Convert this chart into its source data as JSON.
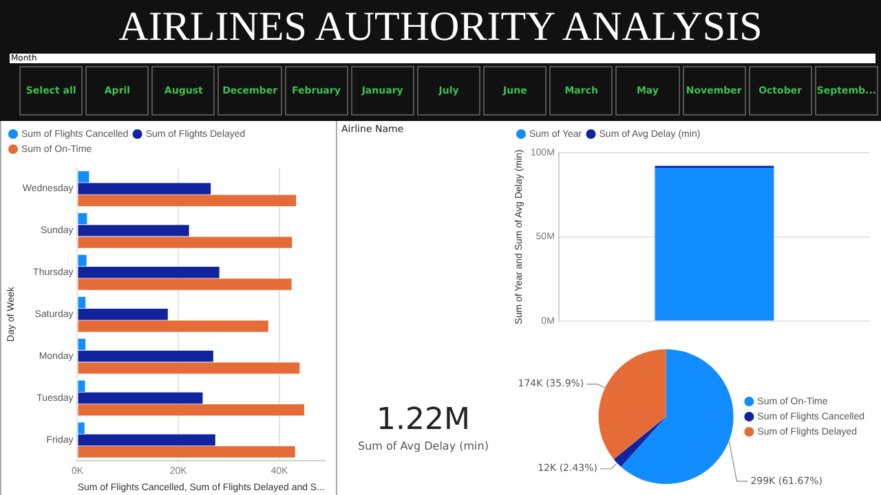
{
  "chart_data": [
    {
      "type": "other",
      "title": "AIRLINES AUTHORITY ANALYSIS",
      "subtitle": "Month",
      "annotations": [
        "Select all",
        "April",
        "August",
        "December",
        "February",
        "January",
        "July",
        "June",
        "March",
        "May",
        "November",
        "October",
        "Septemb..."
      ]
    },
    {
      "type": "bar",
      "orientation": "horizontal",
      "categories": [
        "Wednesday",
        "Sunday",
        "Thursday",
        "Saturday",
        "Monday",
        "Tuesday",
        "Friday"
      ],
      "series": [
        {
          "name": "Sum of Flights Cancelled",
          "color": "#118dff",
          "values": [
            2300,
            1900,
            1800,
            1600,
            1600,
            1500,
            1400
          ]
        },
        {
          "name": "Sum of Flights Delayed",
          "color": "#12239e",
          "values": [
            26400,
            22100,
            28100,
            17900,
            26900,
            24800,
            27300
          ]
        },
        {
          "name": "Sum of On-Time",
          "color": "#e66c37",
          "values": [
            43300,
            42500,
            42400,
            37800,
            44000,
            44900,
            43100
          ]
        }
      ],
      "xlim": [
        0,
        49000
      ],
      "xticks": [
        {
          "value": 0,
          "label": "0K"
        },
        {
          "value": 20000,
          "label": "20K"
        },
        {
          "value": 40000,
          "label": "40K"
        }
      ],
      "xlabel": "Sum of Flights Cancelled, Sum of Flights Delayed and S...",
      "ylabel": "Day of Week",
      "grid": "x",
      "legend": "top left"
    },
    {
      "type": "other",
      "title": "Airline Name"
    },
    {
      "type": "bar",
      "stacked": true,
      "categories": [
        null
      ],
      "series": [
        {
          "name": "Sum of Year",
          "color": "#118dff",
          "values": [
            91000000
          ]
        },
        {
          "name": "Sum of Avg Delay (min)",
          "color": "#12239e",
          "values": [
            1200000
          ]
        }
      ],
      "ylim": [
        0,
        100000000
      ],
      "yticks": [
        {
          "value": 0,
          "label": "0M"
        },
        {
          "value": 50000000,
          "label": "50M"
        },
        {
          "value": 100000000,
          "label": "100M"
        }
      ],
      "ylabel": "Sum of Year and Sum of Avg Delay (min)",
      "grid": "y",
      "legend": "top left"
    },
    {
      "type": "pie",
      "categories": [
        "Sum of On-Time",
        "Sum of Flights Cancelled",
        "Sum of Flights Delayed"
      ],
      "values": [
        299000,
        12000,
        174000
      ],
      "colors": [
        "#118dff",
        "#12239e",
        "#e66c37"
      ],
      "value_labels": [
        "299K (61.67%)",
        "12K (2.43%)",
        "174K (35.9%)"
      ],
      "legend": "right"
    },
    {
      "type": "other",
      "annotations": [
        "1.22M",
        "Sum of Avg Delay (min)"
      ]
    }
  ]
}
